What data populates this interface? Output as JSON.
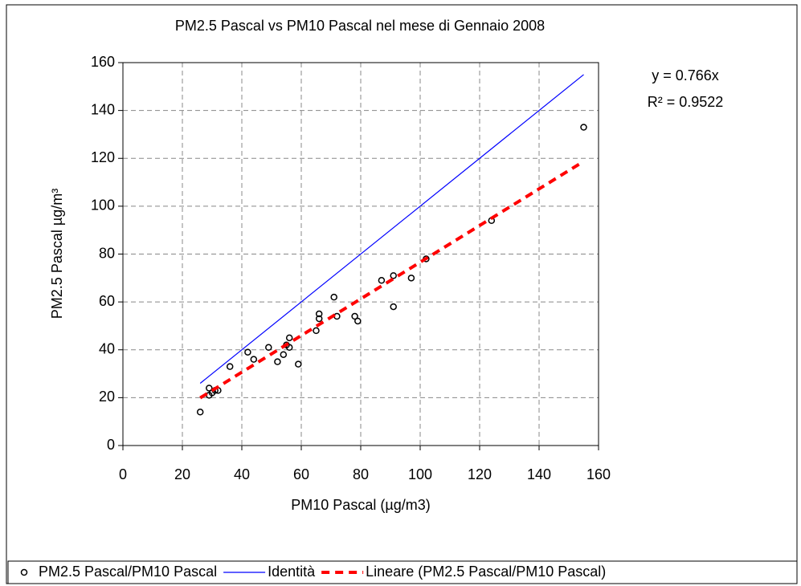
{
  "chart_data": {
    "type": "scatter",
    "title": "PM2.5 Pascal vs PM10 Pascal nel mese di Gennaio 2008",
    "x_label": "PM10 Pascal (µg/m3)",
    "y_label": "PM2.5 Pascal µg/m³",
    "annotations": [
      "y = 0.766x",
      "R² = 0.9522"
    ],
    "xlim": [
      0,
      160
    ],
    "xticks": [
      0,
      20,
      40,
      60,
      80,
      100,
      120,
      140,
      160
    ],
    "ylim": [
      0,
      160
    ],
    "yticks": [
      0,
      20,
      40,
      60,
      80,
      100,
      120,
      140,
      160
    ],
    "grid": true,
    "legend": "bottom",
    "series": [
      {
        "name": "PM2.5 Pascal/PM10 Pascal",
        "type": "scatter",
        "color": "#000000",
        "x": [
          26,
          29,
          29,
          30,
          31,
          32,
          36,
          42,
          44,
          49,
          52,
          54,
          55,
          56,
          56,
          59,
          65,
          66,
          66,
          71,
          72,
          78,
          79,
          87,
          91,
          91,
          97,
          102,
          124,
          155
        ],
        "values": [
          14,
          24,
          21,
          22,
          23,
          23,
          33,
          39,
          36,
          41,
          35,
          38,
          42,
          45,
          41,
          34,
          48,
          55,
          53,
          62,
          54,
          54,
          52,
          69,
          71,
          58,
          70,
          78,
          94,
          133
        ]
      },
      {
        "name": "Identità",
        "type": "line",
        "color": "#0000ff",
        "line_style": "solid",
        "x": [
          26,
          155
        ],
        "values": [
          26,
          155
        ]
      },
      {
        "name": "Lineare (PM2.5 Pascal/PM10 Pascal)",
        "type": "line",
        "color": "#ff0000",
        "line_style": "dashed",
        "x": [
          26,
          155
        ],
        "values": [
          19.916,
          118.73
        ]
      }
    ]
  }
}
